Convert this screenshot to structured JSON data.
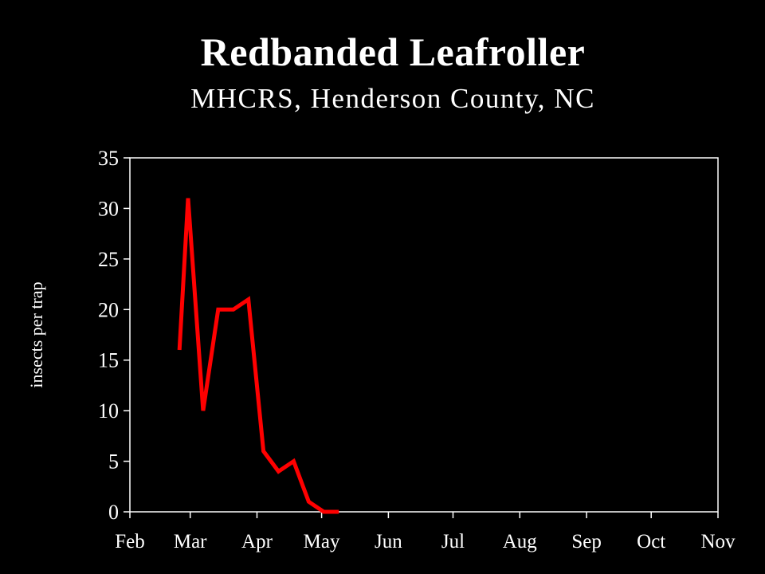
{
  "header": {
    "title": "Redbanded Leafroller",
    "subtitle": "MHCRS, Henderson County, NC"
  },
  "colors": {
    "background": "#000000",
    "text": "#ffffff",
    "series": "#ff0000"
  },
  "chart_data": {
    "type": "line",
    "title": "Redbanded Leafroller",
    "subtitle": "MHCRS, Henderson County, NC",
    "xlabel": "",
    "ylabel": "insects per trap",
    "ylim": [
      0,
      35
    ],
    "yticks": [
      0,
      5,
      10,
      15,
      20,
      25,
      30,
      35
    ],
    "xlim": [
      "Feb 1",
      "Nov 1"
    ],
    "xticks": [
      "Feb",
      "Mar",
      "Apr",
      "May",
      "Jun",
      "Jul",
      "Aug",
      "Sep",
      "Oct",
      "Nov"
    ],
    "grid": false,
    "legend": "none",
    "series": [
      {
        "color": "#ff0000",
        "points": [
          {
            "x": "Feb 24",
            "y": 16
          },
          {
            "x": "Feb 28",
            "y": 31
          },
          {
            "x": "Mar 7",
            "y": 10
          },
          {
            "x": "Mar 14",
            "y": 20
          },
          {
            "x": "Mar 21",
            "y": 20
          },
          {
            "x": "Mar 28",
            "y": 21
          },
          {
            "x": "Apr 4",
            "y": 6
          },
          {
            "x": "Apr 11",
            "y": 4
          },
          {
            "x": "Apr 18",
            "y": 5
          },
          {
            "x": "Apr 25",
            "y": 1
          },
          {
            "x": "May 2",
            "y": 0
          },
          {
            "x": "May 9",
            "y": 0
          }
        ]
      }
    ]
  }
}
